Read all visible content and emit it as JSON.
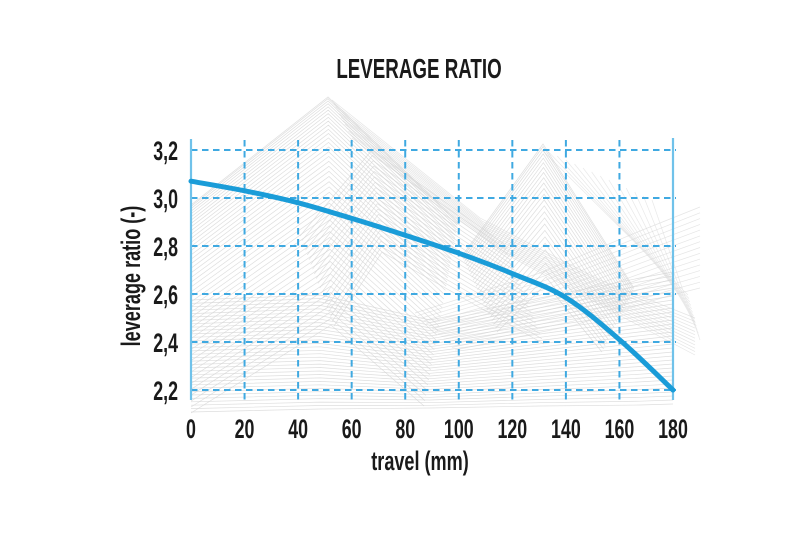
{
  "chart_data": {
    "type": "line",
    "title": "LEVERAGE RATIO",
    "xlabel": "travel (mm)",
    "ylabel": "leverage ratio (-)",
    "x": [
      0,
      20,
      40,
      60,
      80,
      100,
      120,
      140,
      160,
      180
    ],
    "series": [
      {
        "name": "leverage ratio",
        "values": [
          3.07,
          3.03,
          2.98,
          2.915,
          2.845,
          2.77,
          2.685,
          2.585,
          2.41,
          2.2
        ]
      }
    ],
    "xlim": [
      0,
      180
    ],
    "ylim": [
      2.2,
      3.2
    ],
    "x_ticks": [
      0,
      20,
      40,
      60,
      80,
      100,
      120,
      140,
      160,
      180
    ],
    "x_tick_labels": [
      "0",
      "20",
      "40",
      "60",
      "80",
      "100",
      "120",
      "140",
      "160",
      "180"
    ],
    "y_ticks": [
      3.2,
      3.0,
      2.8,
      2.6,
      2.4,
      2.2
    ],
    "y_tick_labels": [
      "3,2",
      "3,0",
      "2,8",
      "2,6",
      "2,4",
      "2,2"
    ],
    "decimal_separator": ",",
    "grid": "dashed",
    "legend": "none",
    "colors": {
      "curve": "#1a9cd8",
      "grid": "#3fa9e1",
      "axis": "#70c2ea",
      "text": "#1a1a1a",
      "background_pattern": "#d3d3d3",
      "background": "#ffffff"
    }
  }
}
